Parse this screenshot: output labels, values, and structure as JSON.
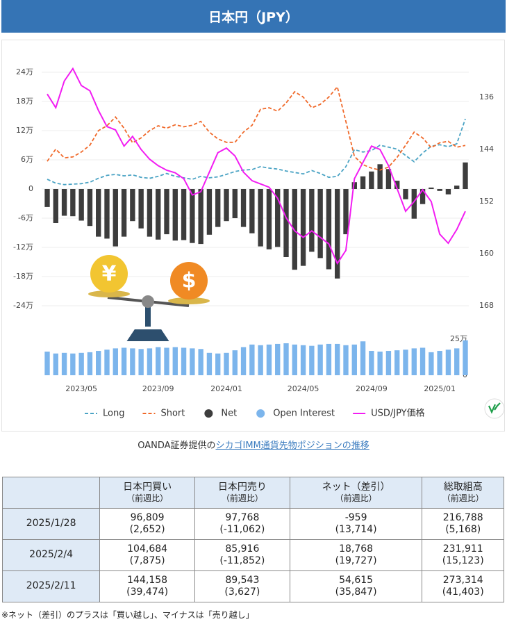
{
  "header": {
    "title": "日本円（JPY）"
  },
  "chart_data": {
    "type": "combo",
    "categories": [
      null,
      null,
      null,
      null,
      "2023/05",
      null,
      null,
      null,
      null,
      null,
      null,
      null,
      null,
      "2023/09",
      null,
      null,
      null,
      null,
      null,
      null,
      null,
      "2024/01",
      null,
      null,
      null,
      null,
      null,
      null,
      null,
      null,
      "2024/05",
      null,
      null,
      null,
      null,
      null,
      null,
      null,
      "2024/09",
      null,
      null,
      null,
      null,
      null,
      null,
      null,
      "2025/01",
      null,
      null,
      null
    ],
    "ylim": [
      -240000,
      240000
    ],
    "yticks": [
      {
        "value": 240000,
        "label": "24万"
      },
      {
        "value": 180000,
        "label": "18万"
      },
      {
        "value": 120000,
        "label": "12万"
      },
      {
        "value": 60000,
        "label": "6万"
      },
      0,
      {
        "value": -60000,
        "label": "-6万"
      },
      {
        "value": -120000,
        "label": "-12万"
      },
      {
        "value": -180000,
        "label": "-18万"
      },
      {
        "value": -240000,
        "label": "-24万"
      }
    ],
    "y2lim": [
      168,
      132
    ],
    "y2ticks": [
      136,
      144,
      152,
      160,
      168
    ],
    "y3lim": [
      0,
      250000
    ],
    "y3ticks": [
      0,
      {
        "value": 250000,
        "label": "25万"
      }
    ],
    "grid": true,
    "series": [
      {
        "name": "Long",
        "type": "line",
        "dash": true,
        "color": "#4aa3c4",
        "values": [
          20000,
          12000,
          9000,
          10000,
          11000,
          14000,
          22000,
          28000,
          30000,
          27000,
          29000,
          24000,
          22000,
          26000,
          32000,
          26000,
          23000,
          20000,
          26000,
          23000,
          25000,
          30000,
          36000,
          39000,
          40000,
          46000,
          43000,
          41000,
          37000,
          34000,
          31000,
          38000,
          32000,
          24000,
          26000,
          46000,
          81000,
          76000,
          79000,
          90000,
          86000,
          82000,
          69000,
          56000,
          74000,
          88000,
          91000,
          87000,
          93000,
          144158
        ]
      },
      {
        "name": "Short",
        "type": "line",
        "dash": true,
        "color": "#f0692a",
        "values": [
          57000,
          82000,
          64000,
          66000,
          76000,
          90000,
          120000,
          130000,
          148000,
          125000,
          95000,
          105000,
          120000,
          130000,
          125000,
          132000,
          128000,
          131000,
          139000,
          117000,
          103000,
          96000,
          96000,
          117000,
          131000,
          164000,
          167000,
          160000,
          177000,
          200000,
          189000,
          167000,
          174000,
          189000,
          210000,
          139000,
          67000,
          50000,
          43000,
          39000,
          45000,
          65000,
          90000,
          117000,
          105000,
          85000,
          95000,
          98000,
          86000,
          89543
        ]
      },
      {
        "name": "Net",
        "type": "bar",
        "color": "#3d3d3d",
        "values": [
          -37000,
          -70000,
          -55000,
          -56000,
          -65000,
          -76000,
          -98000,
          -102000,
          -118000,
          -98000,
          -66000,
          -81000,
          -98000,
          -104000,
          -93000,
          -106000,
          -105000,
          -111000,
          -113000,
          -94000,
          -78000,
          -66000,
          -60000,
          -78000,
          -91000,
          -118000,
          -124000,
          -119000,
          -140000,
          -166000,
          -158000,
          -129000,
          -142000,
          -165000,
          -184000,
          -93000,
          14000,
          26000,
          36000,
          51000,
          41000,
          17000,
          -21000,
          -61000,
          -31000,
          3000,
          -4000,
          -11000,
          7000,
          54615
        ]
      },
      {
        "name": "Open Interest",
        "type": "bar",
        "axis": "y3",
        "color": "#7cb5ec",
        "values": [
          185000,
          170000,
          175000,
          170000,
          175000,
          180000,
          190000,
          200000,
          210000,
          215000,
          210000,
          205000,
          210000,
          220000,
          215000,
          220000,
          215000,
          210000,
          205000,
          175000,
          170000,
          175000,
          195000,
          220000,
          240000,
          235000,
          240000,
          245000,
          250000,
          240000,
          235000,
          230000,
          240000,
          245000,
          245000,
          235000,
          240000,
          265000,
          190000,
          185000,
          190000,
          195000,
          200000,
          210000,
          215000,
          180000,
          190000,
          200000,
          210000,
          273314
        ]
      },
      {
        "name": "USD/JPY価格",
        "type": "line",
        "axis": "y2",
        "color": "#f21df2",
        "values": [
          135.5,
          137.6,
          133.5,
          131.6,
          134.2,
          135,
          138,
          140.5,
          141,
          143.5,
          142,
          144,
          145.5,
          146.5,
          147.2,
          147.6,
          148.5,
          151,
          150.5,
          147.5,
          144.5,
          143.8,
          145,
          147.5,
          148.8,
          149.3,
          149.8,
          151.5,
          154.5,
          156.5,
          157.5,
          156.5,
          157.5,
          158.5,
          161.5,
          159.5,
          148.5,
          146,
          143.5,
          144,
          146.5,
          150,
          153.5,
          152,
          150.2,
          152,
          157,
          158.4,
          156.3,
          153.5
        ]
      }
    ]
  },
  "illustration": {
    "yen": "¥",
    "dollar": "$"
  },
  "caption": {
    "prefix": "OANDA証券提供の",
    "link": "シカゴIMM通貨先物ポジションの推移"
  },
  "table": {
    "header": [
      {
        "main": "日本円買い",
        "sub": "（前週比）"
      },
      {
        "main": "日本円売り",
        "sub": "（前週比）"
      },
      {
        "main": "ネット（差引）",
        "sub": "（前週比）"
      },
      {
        "main": "総取組高",
        "sub": "（前週比）"
      }
    ],
    "rows": [
      {
        "date": "2025/1/28",
        "cells": [
          [
            "96,809",
            "(2,652)"
          ],
          [
            "97,768",
            "(-11,062)"
          ],
          [
            "-959",
            "(13,714)"
          ],
          [
            "216,788",
            "(5,168)"
          ]
        ]
      },
      {
        "date": "2025/2/4",
        "cells": [
          [
            "104,684",
            "(7,875)"
          ],
          [
            "85,916",
            "(-11,852)"
          ],
          [
            "18,768",
            "(19,727)"
          ],
          [
            "231,911",
            "(15,123)"
          ]
        ]
      },
      {
        "date": "2025/2/11",
        "cells": [
          [
            "144,158",
            "(39,474)"
          ],
          [
            "89,543",
            "(3,627)"
          ],
          [
            "54,615",
            "(35,847)"
          ],
          [
            "273,314",
            "(41,403)"
          ]
        ]
      }
    ]
  },
  "note": "※ネット（差引）のプラスは「買い越し」、マイナスは「売り越し」"
}
